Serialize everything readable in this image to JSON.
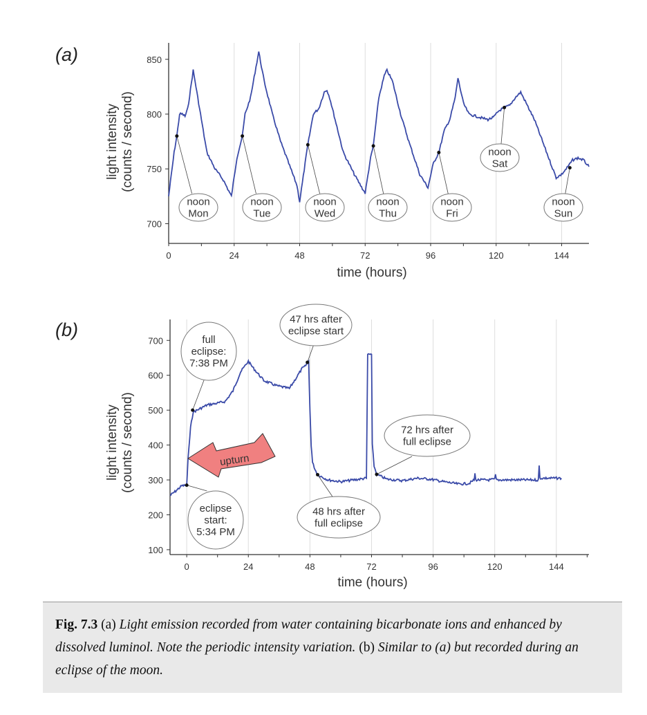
{
  "chart_data": [
    {
      "type": "line",
      "panel_label": "(a)",
      "xlabel": "time (hours)",
      "ylabel_lines": [
        "light  intensity",
        "(counts / second)"
      ],
      "xlim": [
        0,
        154
      ],
      "ylim": [
        682,
        865
      ],
      "xticks": [
        0,
        24,
        48,
        72,
        96,
        120,
        144
      ],
      "yticks": [
        700,
        750,
        800,
        850
      ],
      "grid": "vertical",
      "line_color": "#3a4aa8",
      "series": [
        {
          "name": "light intensity",
          "x": [
            0,
            2,
            3,
            4,
            5,
            6,
            7,
            9,
            11,
            14,
            17,
            20,
            23,
            25,
            27,
            28,
            30,
            33,
            35,
            38,
            41,
            44,
            47,
            48,
            50,
            51,
            53,
            55,
            57,
            58,
            59,
            61,
            64,
            68,
            71,
            72,
            74,
            75,
            77,
            79,
            80,
            82,
            85,
            88,
            92,
            95,
            97,
            99,
            101,
            103,
            105,
            106,
            108,
            110,
            114,
            117,
            119,
            121,
            123,
            125,
            127,
            129,
            131,
            134,
            137,
            140,
            142,
            144,
            146,
            148,
            150,
            152,
            154
          ],
          "y": [
            725,
            765,
            780,
            800,
            800,
            798,
            805,
            840,
            810,
            765,
            750,
            740,
            725,
            760,
            780,
            800,
            815,
            857,
            830,
            800,
            775,
            755,
            735,
            720,
            755,
            772,
            800,
            805,
            820,
            822,
            815,
            795,
            765,
            745,
            732,
            728,
            760,
            771,
            815,
            835,
            840,
            830,
            800,
            775,
            745,
            733,
            755,
            765,
            785,
            795,
            815,
            833,
            810,
            800,
            797,
            795,
            797,
            803,
            806,
            808,
            815,
            820,
            810,
            795,
            775,
            755,
            742,
            745,
            751,
            758,
            760,
            758,
            752
          ]
        }
      ],
      "annotations": [
        {
          "lines": [
            "noon",
            "Mon"
          ],
          "x": 3,
          "y": 780
        },
        {
          "lines": [
            "noon",
            "Tue"
          ],
          "x": 27,
          "y": 780
        },
        {
          "lines": [
            "noon",
            "Wed"
          ],
          "x": 51,
          "y": 772
        },
        {
          "lines": [
            "noon",
            "Thu"
          ],
          "x": 75,
          "y": 771
        },
        {
          "lines": [
            "noon",
            "Fri"
          ],
          "x": 99,
          "y": 765
        },
        {
          "lines": [
            "noon",
            "Sat"
          ],
          "x": 123,
          "y": 806
        },
        {
          "lines": [
            "noon",
            "Sun"
          ],
          "x": 147,
          "y": 751
        }
      ]
    },
    {
      "type": "line",
      "panel_label": "(b)",
      "xlabel": "time (hours)",
      "ylabel_lines": [
        "light  intensity",
        "(counts / second)"
      ],
      "xlim": [
        -6.5,
        156.7
      ],
      "ylim": [
        86,
        760
      ],
      "xticks": [
        0,
        24,
        48,
        72,
        96,
        120,
        144
      ],
      "yticks": [
        100,
        200,
        300,
        400,
        500,
        600,
        700
      ],
      "grid": "vertical",
      "line_color": "#3a4aa8",
      "series": [
        {
          "name": "light intensity",
          "x": [
            -6.5,
            -4,
            -2,
            0,
            0.5,
            1.5,
            2.5,
            4,
            8,
            12,
            15,
            18,
            21,
            23,
            24,
            26,
            30,
            35,
            40,
            42,
            45,
            46,
            47,
            47.5,
            48,
            48.5,
            49,
            50,
            51,
            55,
            60,
            65,
            70,
            70.5,
            72,
            72.3,
            73,
            74,
            78,
            84,
            90,
            95,
            100,
            106,
            110,
            112,
            112.3,
            112.6,
            118,
            120,
            120.3,
            120.6,
            132,
            137,
            137.3,
            137.6,
            145,
            146
          ],
          "y": [
            255,
            270,
            283,
            285,
            360,
            450,
            495,
            500,
            515,
            520,
            525,
            555,
            610,
            630,
            640,
            620,
            585,
            570,
            562,
            585,
            620,
            625,
            635,
            640,
            500,
            400,
            350,
            330,
            315,
            300,
            295,
            300,
            305,
            660,
            660,
            400,
            340,
            316,
            302,
            298,
            305,
            302,
            295,
            288,
            290,
            300,
            318,
            300,
            300,
            302,
            315,
            300,
            300,
            300,
            340,
            305,
            305,
            305
          ]
        }
      ],
      "annotations": [
        {
          "lines": [
            "full",
            "eclipse:",
            "7:38 PM"
          ],
          "x": 2.3,
          "y": 500
        },
        {
          "lines": [
            "eclipse",
            "start:",
            "5:34 PM"
          ],
          "x": 0,
          "y": 285
        },
        {
          "lines": [
            "47 hrs after",
            "eclipse start"
          ],
          "x": 47,
          "y": 637
        },
        {
          "lines": [
            "48 hrs after",
            "full eclipse"
          ],
          "x": 51,
          "y": 315
        },
        {
          "lines": [
            "72 hrs after",
            "full eclipse"
          ],
          "x": 74,
          "y": 316
        }
      ],
      "arrow": {
        "label": "upturn",
        "color": "#f08080"
      }
    }
  ],
  "caption": {
    "fig_label": "Fig. 7.3",
    "part_a": "(a)",
    "text_a": "Light emission recorded from water containing bicarbonate ions and enhanced by dissolved luminol. Note the periodic intensity variation.",
    "part_b": "(b)",
    "text_b": "Similar to (a) but recorded during an eclipse of the moon."
  }
}
